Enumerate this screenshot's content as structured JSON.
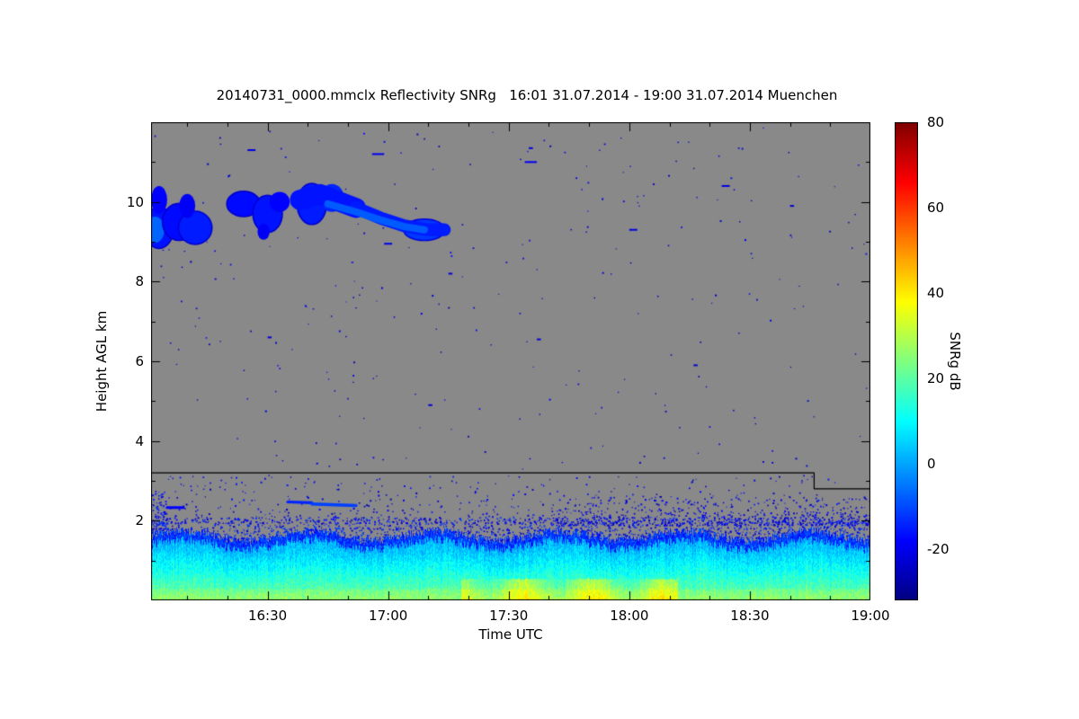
{
  "chart_data": {
    "type": "heatmap",
    "title": "20140731_0000.mmclx Reflectivity SNRg   16:01 31.07.2014 - 19:00 31.07.2014 Muenchen",
    "xlabel": "Time UTC",
    "ylabel": "Height AGL km",
    "x_start": "16:01",
    "x_end": "19:00",
    "t_range": [
      1,
      180
    ],
    "x_ticks": [
      {
        "label": "16:30",
        "minute": 30
      },
      {
        "label": "17:00",
        "minute": 60
      },
      {
        "label": "17:30",
        "minute": 90
      },
      {
        "label": "18:00",
        "minute": 120
      },
      {
        "label": "18:30",
        "minute": 150
      },
      {
        "label": "19:00",
        "minute": 180
      }
    ],
    "x_minor_step": 10,
    "ylim": [
      0,
      12
    ],
    "y_ticks": [
      2,
      4,
      6,
      8,
      10
    ],
    "nodata_color": "#898989",
    "colorbar": {
      "label": "SNRg dB",
      "colormap": "jet",
      "range": [
        -32,
        80
      ],
      "ticks": [
        80,
        60,
        40,
        20,
        0,
        -20
      ]
    },
    "features": {
      "cloud_blobs": [
        {
          "c": [
            3,
            9.35
          ],
          "r": [
            3.5,
            0.5
          ],
          "v": -16,
          "edge": -24
        },
        {
          "c": [
            2,
            9.3
          ],
          "r": [
            2.3,
            0.33
          ],
          "v": -7,
          "edge": null
        },
        {
          "c": [
            3,
            10.05
          ],
          "r": [
            2.0,
            0.35
          ],
          "v": -18,
          "edge": null
        },
        {
          "c": [
            8,
            9.5
          ],
          "r": [
            4.0,
            0.45
          ],
          "v": -17,
          "edge": -24
        },
        {
          "c": [
            12,
            9.35
          ],
          "r": [
            4.0,
            0.4
          ],
          "v": -15,
          "edge": -23
        },
        {
          "c": [
            10,
            9.9
          ],
          "r": [
            2.0,
            0.3
          ],
          "v": -19,
          "edge": null
        },
        {
          "c": [
            24,
            9.95
          ],
          "r": [
            4.0,
            0.3
          ],
          "v": -17,
          "edge": -24
        },
        {
          "c": [
            30,
            9.7
          ],
          "r": [
            3.5,
            0.45
          ],
          "v": -16,
          "edge": -23
        },
        {
          "c": [
            33,
            10.0
          ],
          "r": [
            2.5,
            0.25
          ],
          "v": -18,
          "edge": null
        },
        {
          "c": [
            29,
            9.25
          ],
          "r": [
            1.5,
            0.2
          ],
          "v": -19,
          "edge": null
        },
        {
          "c": [
            41,
            9.95
          ],
          "r": [
            3.5,
            0.5
          ],
          "v": -15,
          "edge": -23
        },
        {
          "c": [
            46,
            10.1
          ],
          "r": [
            3.0,
            0.35
          ],
          "v": -14,
          "edge": null
        },
        {
          "c": [
            69,
            9.3
          ],
          "r": [
            5.0,
            0.25
          ],
          "v": -12,
          "edge": -22
        }
      ],
      "cloud_streaks": [
        {
          "pts": [
            [
              38,
              10.05
            ],
            [
              43,
              10.2
            ],
            [
              48,
              10.0
            ],
            [
              52,
              9.85
            ]
          ],
          "w": 0.5,
          "v": -16
        },
        {
          "pts": [
            [
              52,
              9.85
            ],
            [
              58,
              9.6
            ],
            [
              64,
              9.4
            ],
            [
              70,
              9.3
            ],
            [
              74,
              9.3
            ]
          ],
          "w": 0.32,
          "v": -15
        },
        {
          "pts": [
            [
              45,
              9.95
            ],
            [
              52,
              9.75
            ],
            [
              58,
              9.55
            ],
            [
              64,
              9.38
            ],
            [
              69,
              9.3
            ]
          ],
          "w": 0.18,
          "v": -8
        },
        {
          "pts": [
            [
              35,
              2.47
            ],
            [
              41,
              2.45
            ]
          ],
          "w": 0.07,
          "v": -14
        },
        {
          "pts": [
            [
              41,
              2.42
            ],
            [
              52,
              2.38
            ]
          ],
          "w": 0.08,
          "v": -11
        },
        {
          "pts": [
            [
              5,
              2.33
            ],
            [
              9,
              2.33
            ]
          ],
          "w": 0.07,
          "v": -18
        }
      ],
      "small_patches": [
        {
          "t": [
            56,
            59
          ],
          "h": 11.2,
          "v": -20
        },
        {
          "t": [
            25,
            27
          ],
          "h": 11.3,
          "v": -21
        },
        {
          "t": [
            94,
            97
          ],
          "h": 11.0,
          "v": -19
        },
        {
          "t": [
            95,
            96
          ],
          "h": 11.35,
          "v": -21
        },
        {
          "t": [
            59,
            61
          ],
          "h": 8.95,
          "v": -20
        },
        {
          "t": [
            75,
            76
          ],
          "h": 8.2,
          "v": -22
        },
        {
          "t": [
            120,
            122
          ],
          "h": 9.3,
          "v": -21
        },
        {
          "t": [
            143,
            145
          ],
          "h": 10.4,
          "v": -21
        },
        {
          "t": [
            160,
            161
          ],
          "h": 9.9,
          "v": -22
        },
        {
          "t": [
            97,
            98
          ],
          "h": 6.55,
          "v": -22
        },
        {
          "t": [
            136,
            137
          ],
          "h": 5.9,
          "v": -22
        },
        {
          "t": [
            70,
            71
          ],
          "h": 4.9,
          "v": -22
        },
        {
          "t": [
            30,
            31
          ],
          "h": 6.6,
          "v": -22
        }
      ],
      "speckle_regions": [
        {
          "t": [
            1,
            180
          ],
          "h": [
            3.3,
            11.9
          ],
          "count": 270,
          "v": [
            -27,
            -18
          ],
          "size": [
            1,
            2
          ]
        },
        {
          "t": [
            1,
            180
          ],
          "h": [
            1.95,
            3.15
          ],
          "count": 650,
          "v": [
            -27,
            -15
          ],
          "size": [
            1,
            2
          ],
          "bias": 2.2
        },
        {
          "t": [
            1,
            180
          ],
          "h": [
            1.45,
            2.1
          ],
          "count": 2400,
          "v": [
            -26,
            -9
          ],
          "size": [
            1,
            2
          ],
          "bias": 1.6
        },
        {
          "t": [
            1,
            5
          ],
          "h": [
            1.7,
            2.75
          ],
          "count": 80,
          "v": [
            -24,
            -10
          ],
          "size": [
            1,
            2
          ]
        },
        {
          "t": [
            100,
            180
          ],
          "h": [
            1.9,
            2.6
          ],
          "count": 500,
          "v": [
            -27,
            -14
          ],
          "size": [
            1,
            2
          ],
          "bias": 1.8
        }
      ],
      "boundary_layer": {
        "top_base": 1.5,
        "top_wave": 0.12,
        "top_noise": 0.22,
        "v_bottom": 24,
        "v_top": -2,
        "edge_v": -16,
        "yellow": {
          "t": [
            78,
            132
          ],
          "h": 0.55,
          "boost": 13
        }
      },
      "threshold_line": {
        "points": [
          [
            1,
            3.2
          ],
          [
            166,
            3.2
          ],
          [
            166,
            2.8
          ],
          [
            180,
            2.8
          ]
        ],
        "color": "#000000"
      }
    }
  }
}
